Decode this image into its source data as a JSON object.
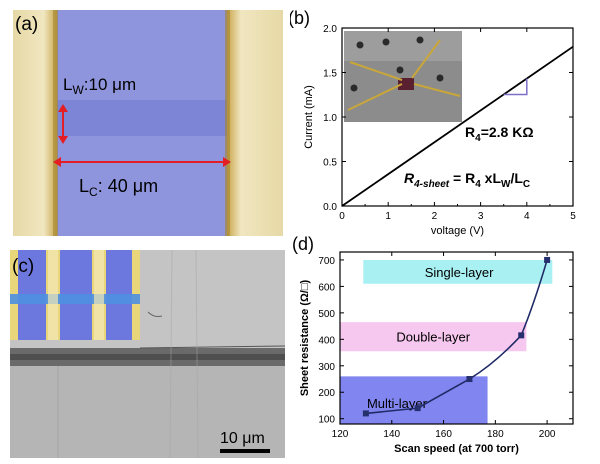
{
  "figure": {
    "panels": [
      {
        "id": "a",
        "label": "(a)",
        "content": "optical micrograph of graphene channel between gold electrodes",
        "annotations": {
          "lw_prefix": "L",
          "lw_sub": "W",
          "lw_value": ":10 μm",
          "lc_prefix": "L",
          "lc_sub": "C",
          "lc_value": ": 40 μm"
        }
      },
      {
        "id": "b",
        "label": "(b)"
      },
      {
        "id": "c",
        "label": "(c)",
        "content": "SEM image of stitched graphene strip with optical inset",
        "scalebar": "10 μm"
      },
      {
        "id": "d",
        "label": "(d)"
      }
    ]
  },
  "chart_data": [
    {
      "panel": "b",
      "type": "line",
      "xlabel": "voltage (V)",
      "ylabel": "Current (mA)",
      "xlim": [
        0,
        5
      ],
      "ylim": [
        0,
        2.0
      ],
      "xticks": [
        "0",
        "1",
        "2",
        "3",
        "4",
        "5"
      ],
      "yticks": [
        "0.0",
        "0.5",
        "1.0",
        "1.5",
        "2.0"
      ],
      "series": [
        {
          "x": [
            0,
            5
          ],
          "y": [
            0,
            1.79
          ]
        }
      ],
      "annotations": {
        "r4_prefix": "R",
        "r4_sub": "4",
        "r4_value": "=2.8 KΩ",
        "sheet_prefix": "R",
        "sheet_sub": "4-sheet",
        "sheet_eq": " = R",
        "sheet_sub2": "4",
        "sheet_mid": " xL",
        "sheet_sub3": "W",
        "sheet_mid2": "/L",
        "sheet_sub4": "C"
      },
      "inset": "photo of probe station"
    },
    {
      "panel": "d",
      "type": "line",
      "xlabel": "Scan speed (at 700 torr)",
      "ylabel": "Sheet resistance (Ω/□)",
      "xlim": [
        120,
        210
      ],
      "ylim": [
        80,
        730
      ],
      "xticks": [
        "120",
        "140",
        "160",
        "180",
        "200"
      ],
      "yticks": [
        "100",
        "200",
        "300",
        "400",
        "500",
        "600",
        "700"
      ],
      "series": [
        {
          "x": [
            130,
            150,
            170,
            190,
            200
          ],
          "y": [
            120,
            140,
            250,
            415,
            700
          ]
        }
      ],
      "regions": [
        {
          "label": "Single-layer",
          "color": "#a9f0f2",
          "x": [
            129,
            202
          ],
          "y": [
            610,
            700
          ]
        },
        {
          "label": "Double-layer",
          "color": "#f7c8ef",
          "x": [
            120,
            192
          ],
          "y": [
            355,
            465
          ]
        },
        {
          "label": "Multi-layer",
          "color": "#8185ef",
          "x": [
            120,
            177
          ],
          "y": [
            80,
            260
          ]
        }
      ],
      "colors": {
        "line": "#1f2a66",
        "marker": "#27306f"
      }
    }
  ]
}
